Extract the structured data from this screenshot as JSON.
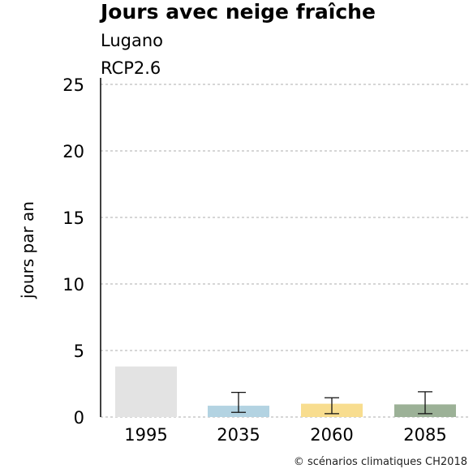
{
  "header": {
    "title": "Jours avec neige fraîche",
    "subtitle": "Lugano",
    "scenario": "RCP2.6"
  },
  "footer": {
    "copyright": "© scénarios climatiques CH2018"
  },
  "chart_data": {
    "type": "bar",
    "categories": [
      "1995",
      "2035",
      "2060",
      "2085"
    ],
    "values": [
      3.8,
      0.85,
      1.0,
      0.95
    ],
    "error_low": [
      null,
      0.35,
      0.25,
      0.25
    ],
    "error_high": [
      null,
      1.85,
      1.45,
      1.9
    ],
    "colors": [
      "#e3e3e3",
      "#b3d3e2",
      "#f8dd8f",
      "#9cb197"
    ],
    "ylabel": "jours par an",
    "xlabel": "",
    "ylim": [
      0,
      25
    ],
    "yticks": [
      0,
      5,
      10,
      15,
      20,
      25
    ],
    "grid": true
  }
}
